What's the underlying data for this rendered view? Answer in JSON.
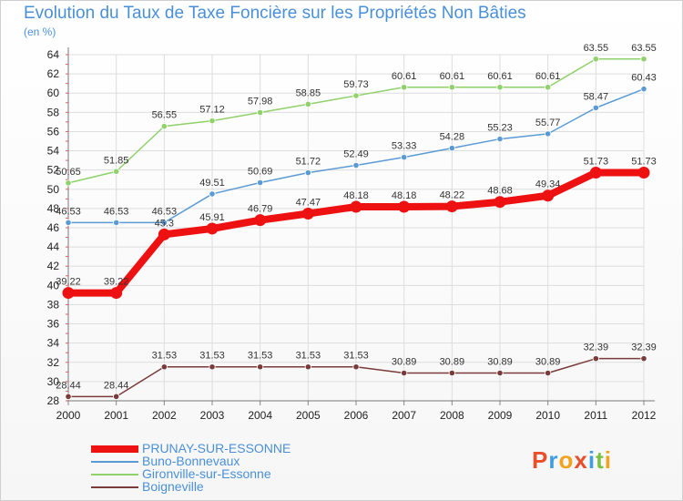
{
  "title": "Evolution du Taux de Taxe Foncière sur les Propriétés Non Bâties",
  "unit": "(en %)",
  "logo": {
    "text": "Proxiti",
    "letter_colors": [
      "#e84f2a",
      "#3f9de0",
      "#f2a31b",
      "#e84f2a",
      "#3f9de0",
      "#7bc043",
      "#f2a31b"
    ]
  },
  "chart_data": {
    "type": "line",
    "title": "Evolution du Taux de Taxe Foncière sur les Propriétés Non Bâties",
    "ylabel": "(en %)",
    "xlabel": "",
    "x": [
      "2000",
      "2001",
      "2002",
      "2003",
      "2004",
      "2005",
      "2006",
      "2007",
      "2008",
      "2009",
      "2010",
      "2011",
      "2012"
    ],
    "ylim": [
      28,
      64
    ],
    "yticks": [
      28,
      30,
      32,
      34,
      36,
      38,
      40,
      42,
      44,
      46,
      48,
      50,
      52,
      54,
      56,
      58,
      60,
      62,
      64
    ],
    "grid": true,
    "legend_position": "bottom-left",
    "series": [
      {
        "name": "PRUNAY-SUR-ESSONNE",
        "color": "#ee1111",
        "weight": "bold",
        "values": [
          39.22,
          39.22,
          45.3,
          45.91,
          46.79,
          47.47,
          48.18,
          48.18,
          48.22,
          48.68,
          49.34,
          51.73,
          51.73
        ],
        "labels": [
          "39.22",
          "39.22",
          "45.3",
          "45.91",
          "46.79",
          "47.47",
          "48.18",
          "48.18",
          "48.22",
          "48.68",
          "49.34",
          "51.73",
          "51.73"
        ]
      },
      {
        "name": "Buno-Bonnevaux",
        "color": "#5b9bd5",
        "weight": "thin",
        "values": [
          46.53,
          46.53,
          46.53,
          49.51,
          50.69,
          51.72,
          52.49,
          53.33,
          54.28,
          55.23,
          55.77,
          58.47,
          60.43
        ],
        "labels": [
          "46.53",
          "46.53",
          "46.53",
          "49.51",
          "50.69",
          "51.72",
          "52.49",
          "53.33",
          "54.28",
          "55.23",
          "55.77",
          "58.47",
          "60.43"
        ]
      },
      {
        "name": "Gironville-sur-Essonne",
        "color": "#8fd16a",
        "weight": "thin",
        "values": [
          50.65,
          51.85,
          56.55,
          57.12,
          57.98,
          58.85,
          59.73,
          60.61,
          60.61,
          60.61,
          60.61,
          63.55,
          63.55
        ],
        "labels": [
          "50.65",
          "51.85",
          "56.55",
          "57.12",
          "57.98",
          "58.85",
          "59.73",
          "60.61",
          "60.61",
          "60.61",
          "60.61",
          "63.55",
          "63.55"
        ]
      },
      {
        "name": "Boigneville",
        "color": "#7a3b3b",
        "weight": "thin",
        "values": [
          28.44,
          28.44,
          31.53,
          31.53,
          31.53,
          31.53,
          31.53,
          30.89,
          30.89,
          30.89,
          30.89,
          32.39,
          32.39
        ],
        "labels": [
          "28.44",
          "28.44",
          "31.53",
          "31.53",
          "31.53",
          "31.53",
          "31.53",
          "30.89",
          "30.89",
          "30.89",
          "30.89",
          "32.39",
          "32.39"
        ]
      }
    ]
  }
}
